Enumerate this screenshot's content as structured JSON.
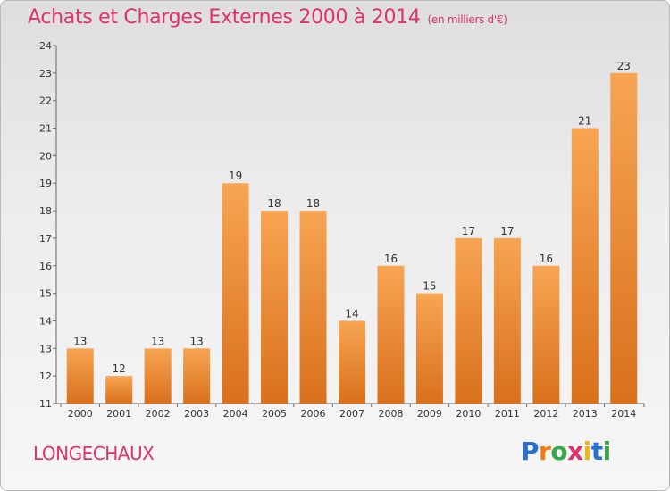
{
  "title": "Achats et Charges Externes 2000 à 2014",
  "subtitle": "(en milliers d'€)",
  "commune": "LONGECHAUX",
  "brand": "Proxiti",
  "colors": {
    "title": "#e0326a",
    "bar_top": "#f7a553",
    "bar_bottom": "#d9701c"
  },
  "chart_data": {
    "type": "bar",
    "title": "Achats et Charges Externes 2000 à 2014",
    "subtitle": "(en milliers d'€)",
    "xlabel": "",
    "ylabel": "",
    "categories": [
      "2000",
      "2001",
      "2002",
      "2003",
      "2004",
      "2005",
      "2006",
      "2007",
      "2008",
      "2009",
      "2010",
      "2011",
      "2012",
      "2013",
      "2014"
    ],
    "values": [
      13,
      12,
      13,
      13,
      19,
      18,
      18,
      14,
      16,
      15,
      17,
      17,
      16,
      21,
      23
    ],
    "ylim": [
      11,
      24
    ],
    "yticks": [
      11,
      12,
      13,
      14,
      15,
      16,
      17,
      18,
      19,
      20,
      21,
      22,
      23,
      24
    ],
    "grid": false,
    "data_labels": true
  }
}
